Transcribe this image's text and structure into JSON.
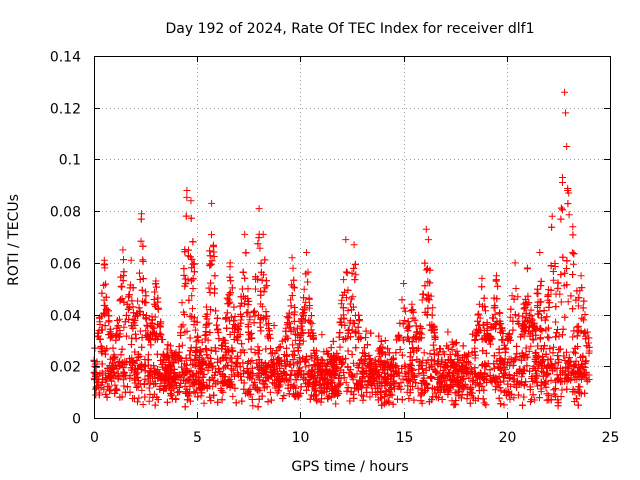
{
  "chart_data": {
    "type": "scatter",
    "title": "Day 192 of 2024, Rate Of TEC Index for receiver dlf1",
    "xlabel": "GPS time / hours",
    "ylabel": "ROTI / TECUs",
    "xlim": [
      0,
      25
    ],
    "ylim": [
      0,
      0.14
    ],
    "xticks": [
      0,
      5,
      10,
      15,
      20,
      25
    ],
    "xtick_labels": [
      "0",
      "5",
      "10",
      "15",
      "20",
      "25"
    ],
    "yticks": [
      0,
      0.02,
      0.04,
      0.06,
      0.08,
      0.1,
      0.12,
      0.14
    ],
    "ytick_labels": [
      "0",
      "0.02",
      "0.04",
      "0.06",
      "0.08",
      "0.1",
      "0.12",
      "0.14"
    ],
    "grid": true,
    "marker": "+",
    "color": "#ff0000",
    "data_range_x": [
      0,
      24
    ],
    "baseline_band": [
      0.004,
      0.03
    ],
    "series": [
      {
        "name": "ROTI",
        "notable_points": [
          {
            "x": 0.5,
            "y": 0.061
          },
          {
            "x": 1.4,
            "y": 0.065
          },
          {
            "x": 1.8,
            "y": 0.061
          },
          {
            "x": 2.3,
            "y": 0.079
          },
          {
            "x": 3.0,
            "y": 0.053
          },
          {
            "x": 4.5,
            "y": 0.088
          },
          {
            "x": 4.7,
            "y": 0.084
          },
          {
            "x": 5.7,
            "y": 0.083
          },
          {
            "x": 6.6,
            "y": 0.06
          },
          {
            "x": 7.3,
            "y": 0.071
          },
          {
            "x": 8.0,
            "y": 0.081
          },
          {
            "x": 8.2,
            "y": 0.071
          },
          {
            "x": 9.6,
            "y": 0.062
          },
          {
            "x": 10.3,
            "y": 0.064
          },
          {
            "x": 12.2,
            "y": 0.069
          },
          {
            "x": 12.6,
            "y": 0.067
          },
          {
            "x": 15.0,
            "y": 0.052
          },
          {
            "x": 15.4,
            "y": 0.044
          },
          {
            "x": 16.1,
            "y": 0.073
          },
          {
            "x": 16.2,
            "y": 0.069
          },
          {
            "x": 18.8,
            "y": 0.054
          },
          {
            "x": 19.5,
            "y": 0.055
          },
          {
            "x": 20.4,
            "y": 0.06
          },
          {
            "x": 21.0,
            "y": 0.058
          },
          {
            "x": 21.6,
            "y": 0.064
          },
          {
            "x": 22.2,
            "y": 0.078
          },
          {
            "x": 22.7,
            "y": 0.093
          },
          {
            "x": 22.8,
            "y": 0.126
          },
          {
            "x": 22.85,
            "y": 0.118
          },
          {
            "x": 22.9,
            "y": 0.105
          },
          {
            "x": 23.0,
            "y": 0.087
          },
          {
            "x": 23.2,
            "y": 0.074
          },
          {
            "x": 23.6,
            "y": 0.055
          }
        ]
      }
    ]
  }
}
